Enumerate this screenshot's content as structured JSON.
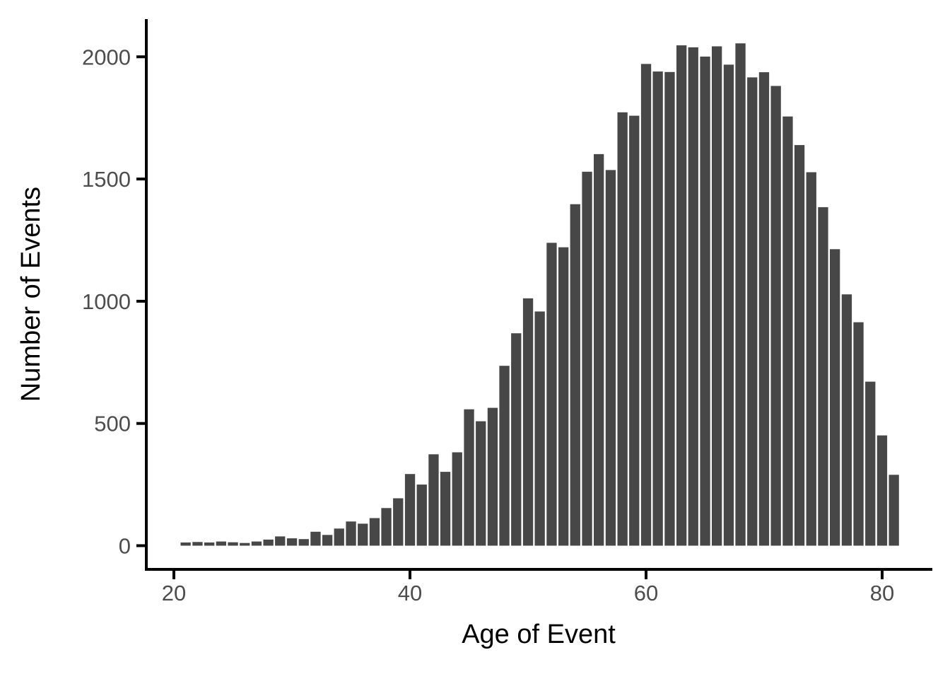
{
  "chart_data": {
    "type": "bar",
    "subtype": "histogram",
    "title": "",
    "xlabel": "Age of Event",
    "ylabel": "Number of Events",
    "bin_width": 1,
    "x": [
      21,
      22,
      23,
      24,
      25,
      26,
      27,
      28,
      29,
      30,
      31,
      32,
      33,
      34,
      35,
      36,
      37,
      38,
      39,
      40,
      41,
      42,
      43,
      44,
      45,
      46,
      47,
      48,
      49,
      50,
      51,
      52,
      53,
      54,
      55,
      56,
      57,
      58,
      59,
      60,
      61,
      62,
      63,
      64,
      65,
      66,
      67,
      68,
      69,
      70,
      71,
      72,
      73,
      74,
      75,
      76,
      77,
      78,
      79,
      80,
      81
    ],
    "values": [
      13,
      15,
      13,
      17,
      14,
      11,
      17,
      25,
      38,
      30,
      27,
      57,
      44,
      70,
      99,
      90,
      113,
      154,
      194,
      293,
      250,
      374,
      302,
      382,
      558,
      509,
      564,
      736,
      869,
      1012,
      958,
      1239,
      1221,
      1397,
      1530,
      1602,
      1537,
      1773,
      1759,
      1971,
      1940,
      1938,
      2047,
      2039,
      2001,
      2043,
      1968,
      2055,
      1916,
      1937,
      1881,
      1756,
      1639,
      1528,
      1385,
      1213,
      1028,
      914,
      671,
      451,
      290
    ],
    "x_ticks": [
      20,
      40,
      60,
      80
    ],
    "y_ticks": [
      0,
      500,
      1000,
      1500,
      2000
    ],
    "xlim": [
      17.7,
      84.3
    ],
    "ylim": [
      0,
      2160
    ],
    "grid": false,
    "legend": false,
    "background": "#FFFFFF",
    "colors": {
      "bar_fill": "#474747",
      "axis_line": "#000000",
      "tick_mark": "#000000",
      "tick_label": "#4D4D4D",
      "axis_title": "#000000"
    }
  }
}
